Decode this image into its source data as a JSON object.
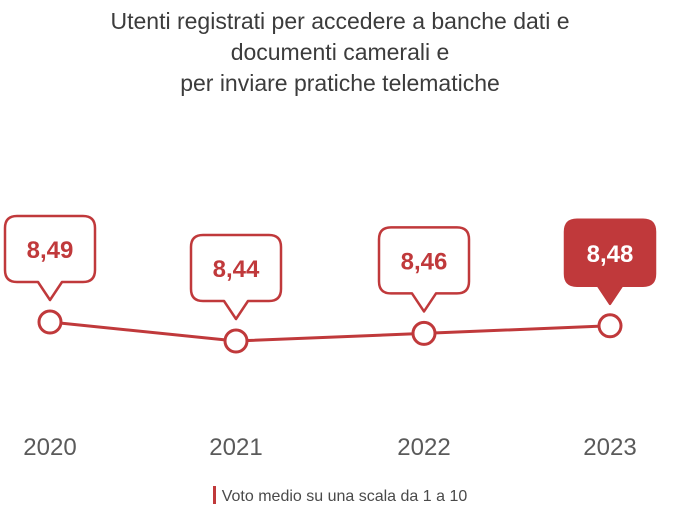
{
  "colors": {
    "accent": "#c0393b",
    "text": "#3c3c3c",
    "tick_text": "#5a5a5a",
    "background": "#ffffff"
  },
  "chart_data": {
    "type": "line",
    "title": [
      "Utenti registrati per accedere a banche dati e",
      "documenti camerali e",
      "per inviare pratiche telematiche"
    ],
    "categories": [
      "2020",
      "2021",
      "2022",
      "2023"
    ],
    "values": [
      8.49,
      8.44,
      8.46,
      8.48
    ],
    "value_labels": [
      "8,49",
      "8,44",
      "8,46",
      "8,48"
    ],
    "highlight_index": 3,
    "legend": "Voto medio su una scala da 1 a 10",
    "legend_position": "bottom-center",
    "xlabel": "",
    "ylabel": "",
    "grid": false,
    "axis_visible": false
  }
}
